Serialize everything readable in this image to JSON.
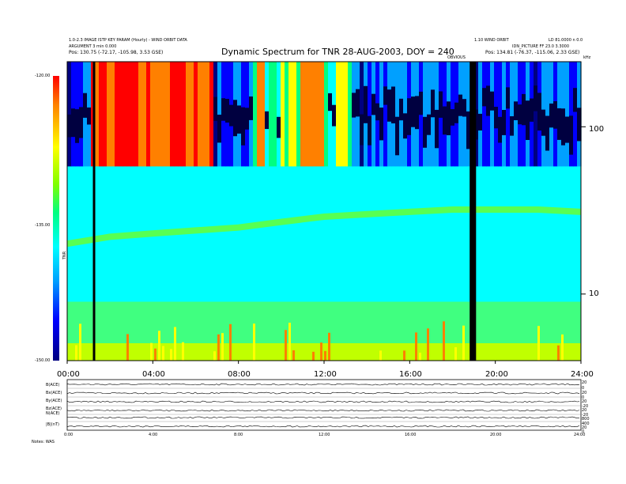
{
  "header": {
    "title": "Dynamic Spectrum for TNR 28-AUG-2003, DOY = 240",
    "left_info_1": "1.0-2.3 IMAGE ISTP KEY PARAM (Hourly) - WIND ORBIT DATA",
    "left_info_2": "ARGUMENT 3 min 0.000",
    "left_pos_label": "Pos:",
    "left_pos_value": "130.75 (-72.17, -105.98, 3.53 GSE)",
    "right_info_1": "1.10 WIND ORBIT",
    "right_info_2": "LD 81.0000 n 0.0",
    "right_info_3": "IDN_PICTURE  FF 23.0 3.3000",
    "right_pos_label": "Pos:",
    "right_pos_value": "134.81 (-76.37, -115.06, 2.33 GSE)",
    "khz_label": "kHz",
    "center_label": "OBVIOUS"
  },
  "colorbar": {
    "tick_labels": [
      "-120.00",
      "-135.00",
      "-150.00"
    ],
    "ticks": [
      -120,
      -135,
      -150
    ],
    "range": [
      -150,
      -120
    ],
    "unit": "TNR"
  },
  "chart_data": {
    "type": "heatmap",
    "title": "Dynamic Spectrum for TNR 28-AUG-2003, DOY = 240",
    "x_tick_labels": [
      "00:00",
      "04:00",
      "08:00",
      "12:00",
      "16:00",
      "20:00",
      "24:00"
    ],
    "x_ticks_hours": [
      0,
      4,
      8,
      12,
      16,
      20,
      24
    ],
    "xlim_hours": [
      0,
      24
    ],
    "y_tick_labels": [
      "100",
      "10"
    ],
    "y_ticks_khz": [
      100,
      10
    ],
    "ylim_khz": [
      4,
      245
    ],
    "y_scale": "log",
    "colorscale": [
      "#000080",
      "#0000ff",
      "#00a0ff",
      "#00ffff",
      "#00ff80",
      "#ffff00",
      "#ff8000",
      "#ff0000"
    ],
    "data_gaps_hours": [
      [
        1.2,
        1.3
      ],
      [
        18.8,
        19.1
      ]
    ],
    "band_boundary_khz": 58,
    "plasma_line_khz": [
      [
        0,
        20
      ],
      [
        2,
        22
      ],
      [
        4,
        23
      ],
      [
        6,
        24
      ],
      [
        8,
        25
      ],
      [
        10,
        27
      ],
      [
        12,
        29
      ],
      [
        14,
        30
      ],
      [
        16,
        31
      ],
      [
        18,
        32
      ],
      [
        20,
        32
      ],
      [
        22,
        32
      ],
      [
        24,
        31
      ]
    ]
  },
  "lower_panels": {
    "labels": [
      "B(ACE)",
      "Bx(ACE)",
      "By(ACE)",
      "Bz(ACE)",
      "N(ACE)",
      "|B|(nT)"
    ],
    "right_ticks": [
      [
        "20",
        "0"
      ],
      [
        "20",
        "0"
      ],
      [
        "20",
        "-20"
      ],
      [
        "20",
        "-20"
      ],
      [
        "800",
        "400"
      ],
      [
        "20",
        "0"
      ]
    ],
    "x_tick_labels": [
      "0:00",
      "4:00",
      "8:00",
      "12:00",
      "16:00",
      "20:00",
      "24:00"
    ],
    "footer": "Notes:  WAS"
  }
}
